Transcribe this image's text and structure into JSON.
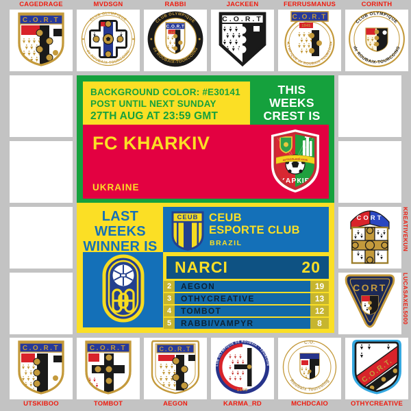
{
  "board": {
    "background_note": {
      "line1": "BACKGROUND COLOR: #E30141",
      "line2": "POST UNTIL NEXT SUNDAY",
      "line3": "27TH AUG AT 23:59 GMT"
    },
    "this_weeks": [
      "THIS",
      "WEEKS",
      "CREST IS"
    ],
    "featured": {
      "club": "FC KHARKIV",
      "country": "UKRAINE",
      "crest_text": "ХАРКІВ",
      "crest_ribbon_text": "ФУТБОЛЬНИЙ КЛУБ"
    },
    "last_weeks": [
      "LAST",
      "WEEKS",
      "WINNER IS"
    ],
    "winner_club": {
      "line1": "CEUB",
      "line2": "ESPORTE CLUB",
      "country": "BRAZIL",
      "crest_band": "CEUB"
    },
    "leaderboard": {
      "first_name": "NARCI",
      "first_score": "20",
      "rows": [
        {
          "rank": "2",
          "name": "AEGON",
          "score": "19"
        },
        {
          "rank": "3",
          "name": "OTHYCREATIVE",
          "score": "13"
        },
        {
          "rank": "4",
          "name": "TOMBOT",
          "score": "12"
        },
        {
          "rank": "5",
          "name": "RABBI/VAMPYR",
          "score": "8"
        }
      ]
    }
  },
  "participants": {
    "top": [
      {
        "name": "CAGEDRAGE",
        "variant": "cagedrage"
      },
      {
        "name": "MVDSGN",
        "variant": "mvdsgn"
      },
      {
        "name": "RABBI",
        "variant": "rabbi"
      },
      {
        "name": "JACKEEN",
        "variant": "jackeen"
      },
      {
        "name": "FERRUSMANUS",
        "variant": "ferrusmanus"
      },
      {
        "name": "CORINTH",
        "variant": "corinth"
      }
    ],
    "right": [
      {
        "name": "KREATIVEKUN",
        "variant": "kreativekun"
      },
      {
        "name": "LUCASAXEL5000",
        "variant": "lucasaxel"
      }
    ],
    "bottom": [
      {
        "name": "UTSKIBOO",
        "variant": "utskiboo"
      },
      {
        "name": "TOMBOT",
        "variant": "tombot"
      },
      {
        "name": "AEGON",
        "variant": "aegon"
      },
      {
        "name": "KARMA_RD",
        "variant": "karma"
      },
      {
        "name": "MCHDCAIO",
        "variant": "mchdcaio"
      },
      {
        "name": "OTHYCREATIVE",
        "variant": "othycreative"
      }
    ]
  },
  "crest_labels": {
    "cort": "C.O.R.T",
    "cort_dots": "C.O.R.T.",
    "cort_plain": "CORT",
    "ring_top": "CLUB OLYMPIQUE",
    "ring_bottom": "de ROUBAIX-TOURCOING",
    "ring_alt": "OLYMPIQUE de ROUBAIX TOURCOING",
    "ring_co_top": "C.O.",
    "ring_co_bottom": "Roubaix Tourcoing",
    "year": "1945"
  },
  "colors": {
    "page_bg": "#C3C3C3",
    "green": "#15A13D",
    "yellow": "#FBDF25",
    "pink": "#E30141",
    "blue": "#1470B8",
    "blue_row": "#1168A8",
    "blue_dark": "#0E5283",
    "olive": "#C6B52F",
    "navy": "#0B2236",
    "label_red": "#EE1C0F"
  }
}
